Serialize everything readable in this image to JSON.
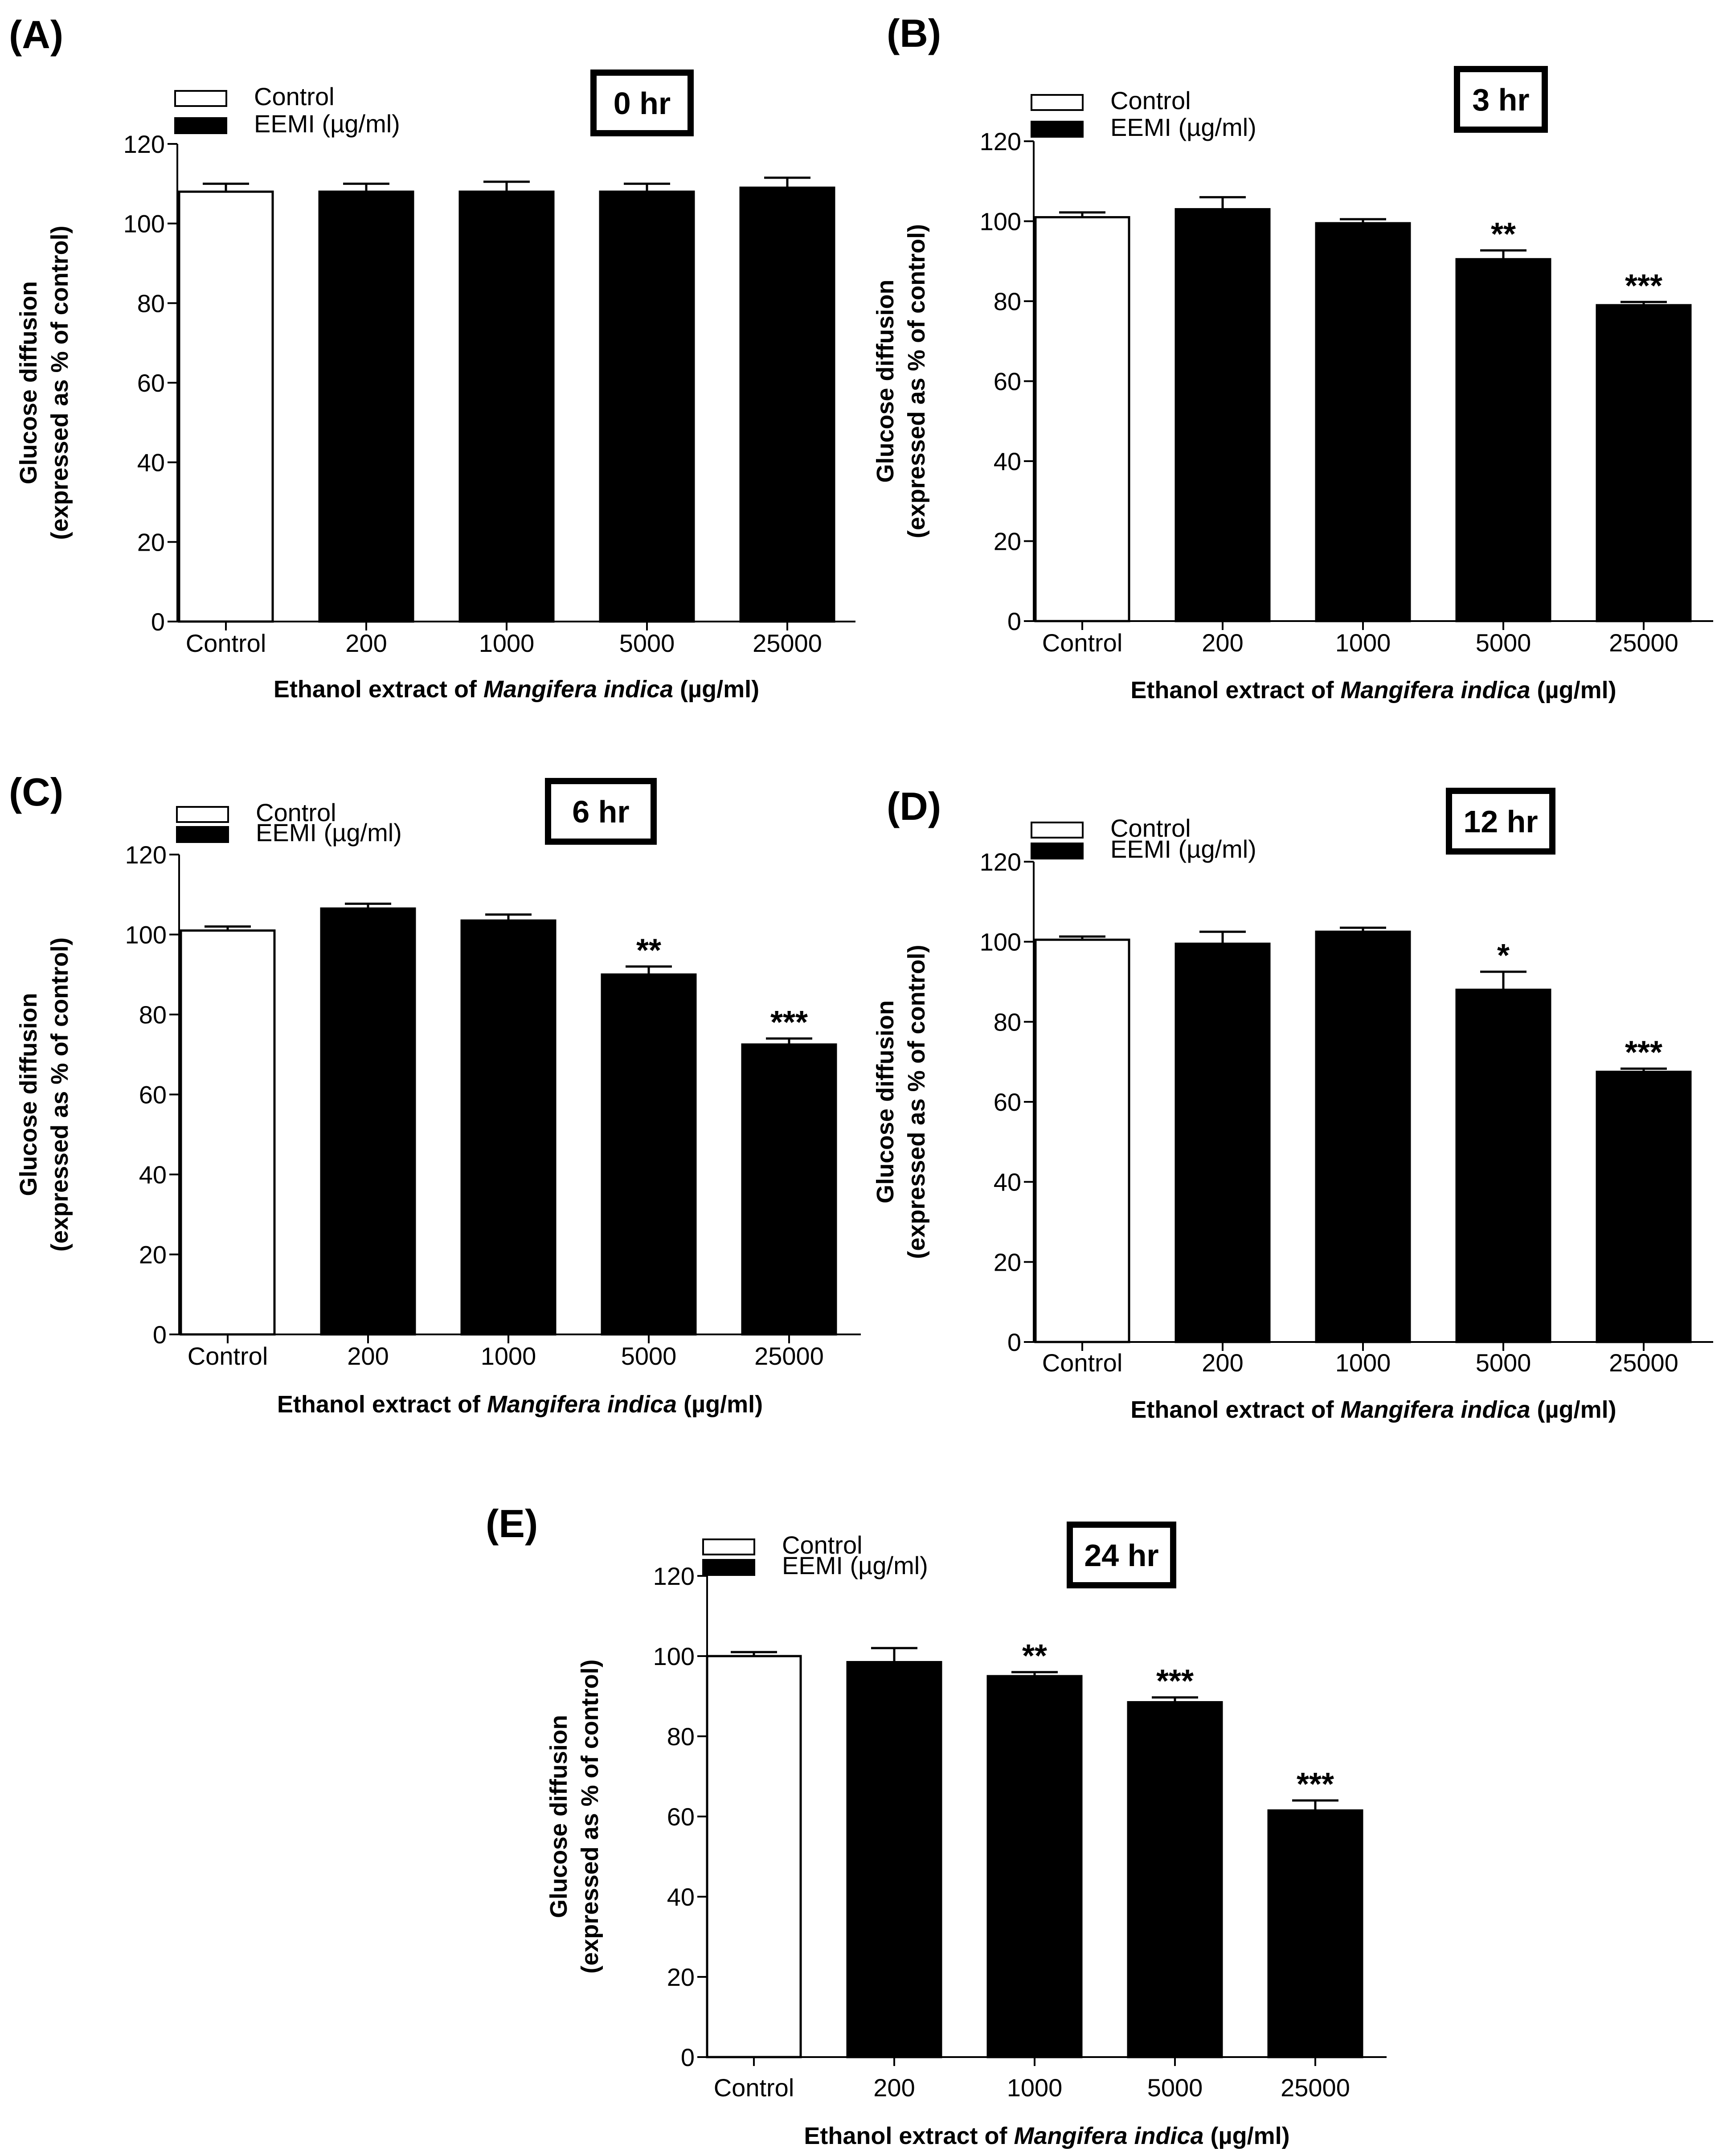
{
  "figure": {
    "xlabel_prefix": "Ethanol extract of ",
    "xlabel_italic": "Mangifera indica",
    "xlabel_suffix": " (µg/ml)",
    "ylabel_line1": "Glucose diffusion",
    "ylabel_line2": "(expressed as % of control)",
    "legend": {
      "control": "Control",
      "treatment": "EEMI (µg/ml)"
    },
    "colors": {
      "control": "#ffffff",
      "treatment": "#000000",
      "outline": "#000000"
    }
  },
  "chart_data": [
    {
      "type": "bar",
      "panel": "(A)",
      "time_label": "0 hr",
      "categories": [
        "Control",
        "200",
        "1000",
        "5000",
        "25000"
      ],
      "values": [
        108,
        108,
        108,
        108,
        109
      ],
      "errors": [
        2,
        2,
        2.5,
        2,
        2.5
      ],
      "significance": [
        "",
        "",
        "",
        "",
        ""
      ],
      "yticks": [
        "0",
        "20",
        "40",
        "60",
        "80",
        "100",
        "120"
      ],
      "ylim": [
        0,
        120
      ]
    },
    {
      "type": "bar",
      "panel": "(B)",
      "time_label": "3 hr",
      "categories": [
        "Control",
        "200",
        "1000",
        "5000",
        "25000"
      ],
      "values": [
        101,
        103,
        99.5,
        90.5,
        79
      ],
      "errors": [
        1.2,
        3,
        1,
        2.2,
        0.8
      ],
      "significance": [
        "",
        "",
        "",
        "**",
        "***"
      ],
      "yticks": [
        "0",
        "20",
        "40",
        "60",
        "80",
        "100",
        "120"
      ],
      "ylim": [
        0,
        120
      ]
    },
    {
      "type": "bar",
      "panel": "(C)",
      "time_label": "6 hr",
      "categories": [
        "Control",
        "200",
        "1000",
        "5000",
        "25000"
      ],
      "values": [
        101,
        106.5,
        103.5,
        90,
        72.5
      ],
      "errors": [
        1,
        1.2,
        1.5,
        2,
        1.5
      ],
      "significance": [
        "",
        "",
        "",
        "**",
        "***"
      ],
      "yticks": [
        "0",
        "20",
        "40",
        "60",
        "80",
        "100",
        "120"
      ],
      "ylim": [
        0,
        120
      ]
    },
    {
      "type": "bar",
      "panel": "(D)",
      "time_label": "12 hr",
      "categories": [
        "Control",
        "200",
        "1000",
        "5000",
        "25000"
      ],
      "values": [
        100.5,
        99.5,
        102.5,
        88,
        67.5
      ],
      "errors": [
        0.8,
        3,
        1,
        4.5,
        0.8
      ],
      "significance": [
        "",
        "",
        "",
        "*",
        "***"
      ],
      "yticks": [
        "0",
        "20",
        "40",
        "60",
        "80",
        "100",
        "120"
      ],
      "ylim": [
        0,
        120
      ]
    },
    {
      "type": "bar",
      "panel": "(E)",
      "time_label": "24 hr",
      "categories": [
        "Control",
        "200",
        "1000",
        "5000",
        "25000"
      ],
      "values": [
        100,
        98.5,
        95,
        88.5,
        61.5
      ],
      "errors": [
        1,
        3.5,
        1,
        1.2,
        2.5
      ],
      "significance": [
        "",
        "",
        "**",
        "***",
        "***"
      ],
      "yticks": [
        "0",
        "20",
        "40",
        "60",
        "80",
        "100",
        "120"
      ],
      "ylim": [
        0,
        120
      ]
    }
  ]
}
